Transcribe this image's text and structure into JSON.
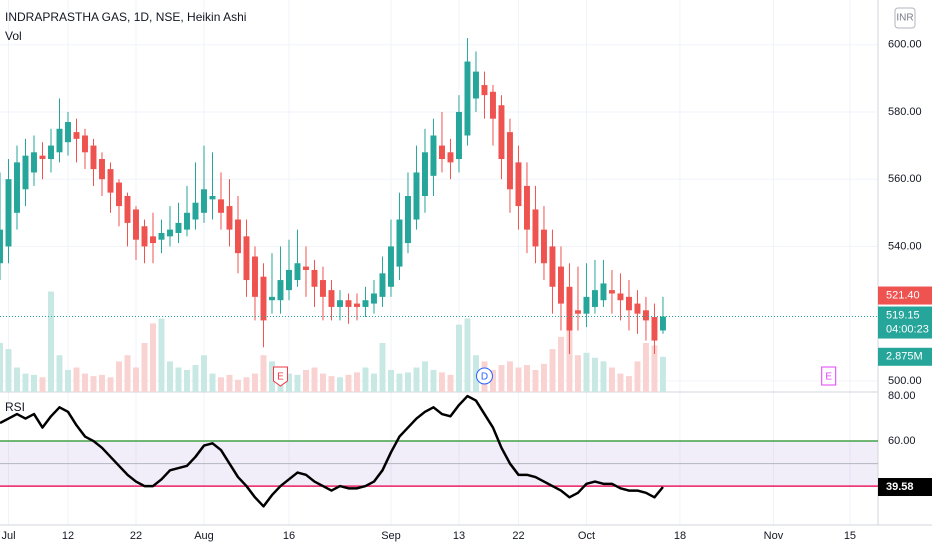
{
  "chart_data": [
    {
      "type": "candlestick",
      "title": "INDRAPRASTHA GAS, 1D, NSE, Heikin Ashi",
      "currency": "INR",
      "up_color": "#26a69a",
      "down_color": "#ef5350",
      "x": [
        0,
        1,
        2,
        3,
        4,
        5,
        6,
        7,
        8,
        9,
        10,
        11,
        12,
        13,
        14,
        15,
        16,
        17,
        18,
        19,
        20,
        21,
        22,
        23,
        24,
        25,
        26,
        27,
        28,
        29,
        30,
        31,
        32,
        33,
        34,
        35,
        36,
        37,
        38,
        39,
        40,
        41,
        42,
        43,
        44,
        45,
        46,
        47,
        48,
        49,
        50,
        51,
        52,
        53,
        54,
        55,
        56,
        57,
        58,
        59,
        60,
        61,
        62,
        63,
        64,
        65,
        66,
        67,
        68,
        69,
        70,
        71,
        72,
        73,
        74,
        75,
        76,
        77,
        78
      ],
      "open": [
        535,
        540,
        550,
        557,
        562,
        567,
        566,
        568,
        571,
        574,
        573,
        570,
        566,
        563,
        559,
        555,
        551,
        546,
        543,
        542,
        543,
        544,
        545,
        548,
        550,
        554,
        554,
        552,
        548,
        543,
        537,
        531,
        524,
        524,
        527,
        530,
        534,
        533,
        530,
        527,
        522,
        524,
        523,
        522,
        523,
        525,
        528,
        534,
        541,
        548,
        555,
        561,
        570,
        568,
        566,
        573,
        584,
        588,
        586,
        582,
        574,
        565,
        558,
        551,
        545,
        540,
        534,
        528,
        521,
        520,
        522,
        524,
        527,
        526,
        525,
        523,
        521,
        519,
        515
      ],
      "high": [
        562,
        566,
        570,
        572,
        573,
        571,
        575,
        584,
        580,
        578,
        575,
        572,
        568,
        565,
        560,
        556,
        552,
        548,
        550,
        548,
        552,
        553,
        558,
        565,
        570,
        568,
        562,
        560,
        555,
        548,
        540,
        535,
        538,
        540,
        542,
        545,
        540,
        536,
        534,
        530,
        527,
        526,
        526,
        528,
        530,
        537,
        548,
        556,
        562,
        570,
        575,
        578,
        580,
        572,
        585,
        602,
        598,
        592,
        588,
        585,
        578,
        570,
        565,
        558,
        552,
        545,
        540,
        535,
        534,
        535,
        536,
        536,
        533,
        532,
        530,
        527,
        525,
        523,
        525
      ],
      "low": [
        530,
        535,
        545,
        552,
        558,
        560,
        562,
        565,
        567,
        565,
        563,
        558,
        555,
        550,
        546,
        540,
        536,
        535,
        535,
        538,
        540,
        541,
        543,
        545,
        547,
        548,
        545,
        540,
        532,
        525,
        518,
        510,
        520,
        520,
        524,
        528,
        525,
        522,
        518,
        518,
        518,
        517,
        518,
        519,
        520,
        522,
        525,
        530,
        538,
        545,
        550,
        555,
        562,
        560,
        562,
        570,
        580,
        578,
        570,
        560,
        550,
        545,
        538,
        535,
        530,
        520,
        515,
        508,
        515,
        516,
        520,
        522,
        520,
        518,
        515,
        514,
        512,
        508,
        514
      ],
      "close": [
        545,
        560,
        565,
        567,
        568,
        566,
        570,
        575,
        577,
        572,
        568,
        563,
        560,
        556,
        552,
        547,
        542,
        540,
        541,
        544,
        545,
        547,
        550,
        553,
        557,
        555,
        550,
        545,
        538,
        530,
        525,
        518,
        525,
        530,
        533,
        535,
        533,
        528,
        525,
        522,
        524,
        522,
        522,
        524,
        526,
        532,
        540,
        548,
        555,
        562,
        568,
        573,
        566,
        565,
        580,
        595,
        592,
        585,
        578,
        566,
        557,
        552,
        545,
        540,
        535,
        528,
        523,
        515,
        520,
        525,
        527,
        529,
        526,
        524,
        521,
        520,
        518,
        512,
        519.15
      ],
      "xlim": [
        0,
        103.3
      ],
      "ylim": [
        496.7,
        613.3
      ],
      "xticks": [
        {
          "value": 1,
          "label": "Jul"
        },
        {
          "value": 8,
          "label": "12"
        },
        {
          "value": 16,
          "label": "22"
        },
        {
          "value": 24,
          "label": "Aug"
        },
        {
          "value": 34,
          "label": "16"
        },
        {
          "value": 46,
          "label": "Sep"
        },
        {
          "value": 54,
          "label": "13"
        },
        {
          "value": 61,
          "label": "22"
        },
        {
          "value": 69,
          "label": "Oct"
        },
        {
          "value": 80,
          "label": "18"
        },
        {
          "value": 91,
          "label": "Nov"
        },
        {
          "value": 100,
          "label": "15"
        }
      ],
      "yticks": [
        {
          "value": 500,
          "label": "500.00"
        },
        {
          "value": 540,
          "label": "540.00"
        },
        {
          "value": 560,
          "label": "560.00"
        },
        {
          "value": 580,
          "label": "580.00"
        },
        {
          "value": 600,
          "label": "600.00"
        }
      ],
      "last_price": 519.15,
      "countdown": "04:00:23",
      "prev_close": {
        "value": 521.4,
        "label": "521.40"
      },
      "volume": {
        "name": "Vol",
        "up_color": "#c8e8e4",
        "down_color": "#f9d3d2",
        "values": [
          4.0,
          3.5,
          2.0,
          1.5,
          1.4,
          1.2,
          8.2,
          3.0,
          1.8,
          2.0,
          1.5,
          1.3,
          1.4,
          1.2,
          2.5,
          3.0,
          2.0,
          4.0,
          5.6,
          6.0,
          2.5,
          2.0,
          1.8,
          2.2,
          3.0,
          1.5,
          1.2,
          1.4,
          1.0,
          1.2,
          1.5,
          3.0,
          2.5,
          2.0,
          1.5,
          1.4,
          1.8,
          2.0,
          1.5,
          1.3,
          1.2,
          1.4,
          1.6,
          2.0,
          1.5,
          4.0,
          1.8,
          1.5,
          1.6,
          2.0,
          2.5,
          1.8,
          1.6,
          1.4,
          5.5,
          6.0,
          3.0,
          2.5,
          1.8,
          2.2,
          2.5,
          2.0,
          2.2,
          1.8,
          2.3,
          3.5,
          4.5,
          6.0,
          3.0,
          3.2,
          2.8,
          2.5,
          2.0,
          1.5,
          1.3,
          2.5,
          4.0,
          3.8,
          2.875
        ],
        "ylim": [
          0,
          32
        ],
        "last_value_label": "2.875M"
      },
      "events": [
        {
          "x": 33,
          "label": "E",
          "color": "#f23645"
        },
        {
          "x": 57,
          "label": "D",
          "color": "#2962ff"
        },
        {
          "x": 97.5,
          "label": "E",
          "color": "#e040fb"
        }
      ]
    },
    {
      "type": "line",
      "title": "RSI",
      "color": "#000000",
      "values": [
        68,
        70,
        72,
        70,
        72,
        66,
        71,
        75,
        73,
        67,
        62,
        60,
        57,
        53,
        49,
        45,
        42,
        40,
        40,
        43,
        47,
        48,
        49,
        53,
        58,
        59,
        56,
        50,
        44,
        40,
        35,
        31,
        36,
        40,
        43,
        46,
        45,
        42,
        40,
        38,
        40,
        39,
        39,
        40,
        42,
        47,
        55,
        62,
        66,
        70,
        73,
        75,
        72,
        71,
        76,
        80,
        78,
        72,
        66,
        57,
        50,
        45,
        45,
        44,
        42,
        40,
        38,
        35,
        37,
        41,
        42,
        41,
        41,
        39,
        38,
        38,
        37,
        35,
        39.58
      ],
      "ylim": [
        22.7,
        81.8
      ],
      "yticks": [
        {
          "value": 60,
          "label": "60.00"
        },
        {
          "value": 80,
          "label": "80.00"
        }
      ],
      "upper_band": 60,
      "middle_band": 50,
      "lower_band": 40,
      "upper_color": "#43a047",
      "lower_color": "#e91e63"
    }
  ]
}
